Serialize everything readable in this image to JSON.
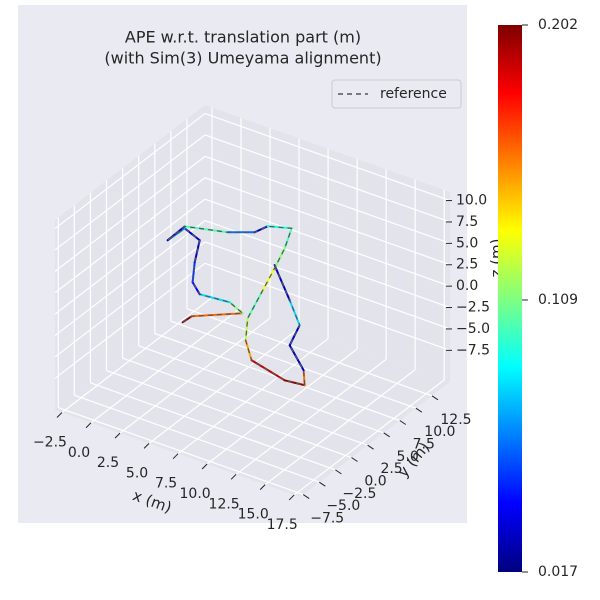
{
  "chart_data": {
    "type": "line3d",
    "title": [
      "APE w.r.t. translation part (m)",
      "(with Sim(3) Umeyama alignment)"
    ],
    "xlabel": "x (m)",
    "ylabel": "y (m)",
    "zlabel": "z (m)",
    "xlim": [
      -3.1,
      18.0
    ],
    "ylim": [
      -8.0,
      15.3
    ],
    "zlim": [
      -11.2,
      11.0
    ],
    "xticks": [
      {
        "value": -2.5,
        "label": "−2.5"
      },
      {
        "value": 0,
        "label": "0.0"
      },
      2.5,
      {
        "value": 5,
        "label": "5.0"
      },
      7.5,
      {
        "value": 10,
        "label": "10.0"
      },
      12.5,
      {
        "value": 15,
        "label": "15.0"
      },
      17.5
    ],
    "yticks": [
      {
        "value": -7.5,
        "label": "−7.5"
      },
      {
        "value": -5,
        "label": "−5.0"
      },
      {
        "value": -2.5,
        "label": "−2.5"
      },
      {
        "value": 0,
        "label": "0.0"
      },
      2.5,
      {
        "value": 5,
        "label": "5.0"
      },
      7.5,
      {
        "value": 10,
        "label": "10.0"
      },
      12.5
    ],
    "zticks": [
      {
        "value": -7.5,
        "label": "−7.5"
      },
      {
        "value": -5,
        "label": "−5.0"
      },
      {
        "value": -2.5,
        "label": "−2.5"
      },
      {
        "value": 0,
        "label": "0.0"
      },
      2.5,
      {
        "value": 5,
        "label": "5.0"
      },
      7.5,
      {
        "value": 10,
        "label": "10.0"
      }
    ],
    "grid": true,
    "legend_loc": "upper right",
    "series": [
      {
        "name": "reference",
        "color": "#555555",
        "dashed": true,
        "x": [
          1.46,
          2.24,
          6.63,
          5.51,
          2.93,
          2.32,
          2.5,
          2.93,
          1.64,
          0.17,
          1.64,
          5.34,
          7.66,
          8.78,
          10.85,
          10.25,
          9.38,
          8.27,
          7.06,
          6.89,
          7.4,
          10.25,
          11.97,
          11.88,
          10.68,
          11.54,
          10.68,
          9.38
        ],
        "y": [
          3.6,
          3.6,
          3.6,
          3.6,
          3.6,
          3.6,
          3.6,
          3.6,
          3.6,
          3.6,
          3.6,
          3.6,
          3.6,
          3.6,
          3.6,
          3.6,
          3.6,
          3.6,
          3.6,
          3.6,
          3.6,
          3.6,
          3.6,
          3.6,
          3.6,
          3.6,
          3.6,
          3.6
        ],
        "z": [
          -5.44,
          -4.37,
          -1.9,
          -1.15,
          -1.46,
          -0.35,
          2.07,
          4.85,
          5.62,
          3.52,
          5.85,
          6.94,
          8.06,
          9.3,
          10.06,
          7.43,
          4.68,
          1.34,
          -2.28,
          -4.93,
          -7.02,
          -7.99,
          -7.74,
          -6.03,
          -3.69,
          -0.93,
          1.57,
          5.04
        ]
      },
      {
        "colormap": "jet",
        "x": [
          1.46,
          2.24,
          6.63,
          5.51,
          2.93,
          2.32,
          2.5,
          2.93,
          1.64,
          0.17,
          1.64,
          5.34,
          7.66,
          8.78,
          10.85,
          10.25,
          9.38,
          8.27,
          7.06,
          6.89,
          7.4,
          10.25,
          11.97,
          11.88,
          10.68,
          11.54,
          10.68,
          9.38
        ],
        "y": [
          3.6,
          3.6,
          3.6,
          3.6,
          3.6,
          3.6,
          3.6,
          3.6,
          3.6,
          3.6,
          3.6,
          3.6,
          3.6,
          3.6,
          3.6,
          3.6,
          3.6,
          3.6,
          3.6,
          3.6,
          3.6,
          3.6,
          3.6,
          3.6,
          3.6,
          3.6,
          3.6,
          3.6
        ],
        "z": [
          -5.44,
          -4.37,
          -1.9,
          -1.15,
          -1.46,
          -0.35,
          2.07,
          4.85,
          5.62,
          3.52,
          5.85,
          6.94,
          8.06,
          9.3,
          10.06,
          7.43,
          4.68,
          1.34,
          -2.28,
          -4.93,
          -7.02,
          -7.99,
          -7.74,
          -6.03,
          -3.69,
          -0.93,
          1.57,
          5.04
        ],
        "values": [
          0.2,
          0.16,
          0.11,
          0.08,
          0.04,
          0.05,
          0.03,
          0.03,
          0.07,
          0.03,
          0.1,
          0.06,
          0.03,
          0.09,
          0.1,
          0.11,
          0.13,
          0.1,
          0.12,
          0.15,
          0.19,
          0.2,
          0.16,
          0.03,
          0.03,
          0.08,
          0.03,
          0.02
        ]
      }
    ],
    "colorbar": {
      "clim": [
        0.017,
        0.202
      ],
      "ticks": [
        0.017,
        0.109,
        0.202
      ]
    }
  }
}
